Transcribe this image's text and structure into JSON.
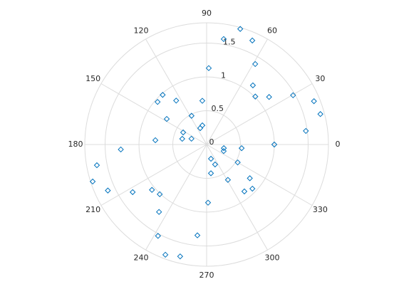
{
  "chart_data": {
    "type": "polar-scatter",
    "color": "#0072bd",
    "marker": "diamond",
    "theta": [
      73.8,
      80.8,
      66.3,
      58.9,
      88.4,
      52,
      44.6,
      37.3,
      29.7,
      22,
      15,
      7.8,
      0,
      354,
      348,
      339,
      287,
      293,
      278.5,
      330,
      322,
      316,
      308.8,
      301,
      271.4,
      264.2,
      256.7,
      249.5,
      242,
      234.8,
      226.7,
      219.7,
      212.8,
      205,
      198,
      190.7,
      183.3,
      175.2,
      166.8,
      152.7,
      159,
      111.4,
      102.5,
      117.7,
      95.6,
      147.3,
      139,
      131.5,
      124.7
    ],
    "r": [
      1.78,
      1.58,
      1.68,
      1.39,
      1.13,
      1.11,
      1.01,
      1.16,
      1.47,
      1.71,
      1.74,
      1.48,
      1.0,
      0.52,
      0.26,
      0.27,
      0.22,
      0.32,
      0.43,
      0.53,
      0.81,
      0.94,
      0.89,
      0.61,
      0.86,
      1.35,
      1.7,
      1.74,
      1.53,
      1.22,
      1.01,
      1.05,
      1.3,
      1.61,
      1.77,
      1.65,
      1.27,
      0.76,
      0.37,
      0.39,
      0.24,
      0.26,
      0.29,
      0.48,
      0.65,
      0.7,
      0.96,
      0.98,
      0.79
    ],
    "rlim": [
      0,
      1.8
    ],
    "rticks": [
      0,
      0.5,
      1,
      1.5
    ],
    "thetaticks": [
      0,
      30,
      60,
      90,
      120,
      150,
      180,
      210,
      240,
      270,
      300,
      330
    ],
    "grid": true
  }
}
